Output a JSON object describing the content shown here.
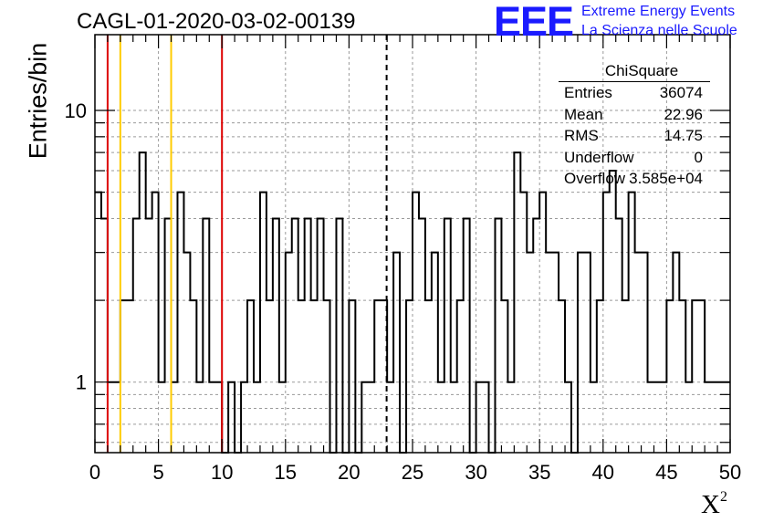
{
  "logo": {
    "mark": "EEE",
    "line1": "Extreme Energy Events",
    "line2": "La Scienza nelle Scuole"
  },
  "stats_box": {
    "title": "ChiSquare",
    "rows": [
      {
        "label": "Entries",
        "value": "36074"
      },
      {
        "label": "Mean",
        "value": "22.96"
      },
      {
        "label": "RMS",
        "value": "14.75"
      },
      {
        "label": "Underflow",
        "value": "0"
      },
      {
        "label": "Overflow",
        "value": "3.585e+04"
      }
    ]
  },
  "colors": {
    "histogram": "#000000",
    "red_marker": "#dd0000",
    "yellow_marker": "#ffcc00",
    "grid": "#9a9a9a",
    "logo": "#1a1aff"
  },
  "chart_data": {
    "type": "histogram",
    "title": "CAGL-01-2020-03-02-00139",
    "xlabel": "X",
    "xlabel_superscript": "2",
    "ylabel": "Entries/bin",
    "xlim": [
      0,
      50
    ],
    "ylim": [
      0.55,
      19
    ],
    "yscale": "log",
    "grid": true,
    "bin_width": 0.5,
    "x_ticks": [
      "0",
      "5",
      "10",
      "15",
      "20",
      "25",
      "30",
      "35",
      "40",
      "45",
      "50"
    ],
    "y_ticks": [
      "1",
      "10"
    ],
    "values": [
      5,
      4,
      1,
      1,
      2,
      2,
      4,
      7,
      4,
      5,
      1,
      4,
      1,
      5,
      3,
      2,
      1,
      4,
      1,
      1,
      0,
      1,
      0,
      1,
      2,
      1,
      5,
      2,
      4,
      1,
      3,
      4,
      2,
      4,
      2,
      4,
      2,
      0,
      4,
      0,
      2,
      0,
      1,
      1,
      2,
      2,
      1,
      3,
      0,
      2,
      5,
      4,
      2,
      3,
      1,
      4,
      1,
      2,
      4,
      0,
      1,
      1,
      0,
      4,
      2,
      1,
      7,
      5,
      3,
      4,
      5,
      3,
      3,
      2,
      1,
      0,
      3,
      3,
      1,
      2,
      5,
      6,
      4,
      2,
      5,
      3,
      3,
      1,
      1,
      1,
      2,
      3,
      2,
      1,
      2,
      2,
      1,
      1,
      1,
      1
    ],
    "vertical_lines": [
      {
        "x": 1,
        "color": "red_marker",
        "style": "solid"
      },
      {
        "x": 2,
        "color": "yellow_marker",
        "style": "solid"
      },
      {
        "x": 6,
        "color": "yellow_marker",
        "style": "solid"
      },
      {
        "x": 10,
        "color": "red_marker",
        "style": "solid"
      },
      {
        "x": 22.96,
        "color": "histogram",
        "style": "dashed"
      }
    ]
  }
}
